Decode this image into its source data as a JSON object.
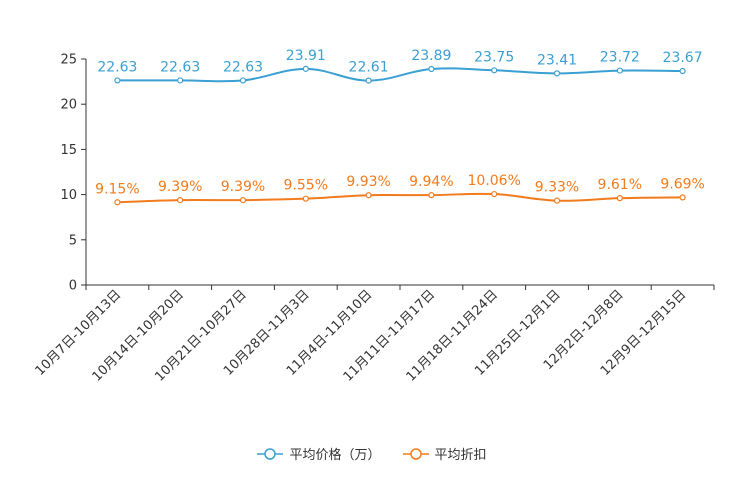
{
  "chart_data": {
    "type": "line",
    "title": "",
    "xlabel": "",
    "ylabel": "",
    "ylim": [
      0,
      25
    ],
    "yticks": [
      0,
      5,
      10,
      15,
      20,
      25
    ],
    "categories": [
      "10月7日-10月13日",
      "10月14日-10月20日",
      "10月21日-10月27日",
      "10月28日-11月3日",
      "11月4日-11月10日",
      "11月11日-11月17日",
      "11月18日-11月24日",
      "11月25日-12月1日",
      "12月2日-12月8日",
      "12月9日-12月15日"
    ],
    "series": [
      {
        "name": "平均价格（万）",
        "color": "#3a9fd3",
        "values": [
          22.63,
          22.63,
          22.63,
          23.91,
          22.61,
          23.89,
          23.75,
          23.41,
          23.72,
          23.67
        ],
        "labels": [
          "22.63",
          "22.63",
          "22.63",
          "23.91",
          "22.61",
          "23.89",
          "23.75",
          "23.41",
          "23.72",
          "23.67"
        ]
      },
      {
        "name": "平均折扣",
        "color": "#f27b1d",
        "values": [
          9.15,
          9.39,
          9.39,
          9.55,
          9.93,
          9.94,
          10.06,
          9.33,
          9.61,
          9.69
        ],
        "labels": [
          "9.15%",
          "9.39%",
          "9.39%",
          "9.55%",
          "9.93%",
          "9.94%",
          "10.06%",
          "9.33%",
          "9.61%",
          "9.69%"
        ]
      }
    ],
    "legend_position": "bottom-center"
  }
}
